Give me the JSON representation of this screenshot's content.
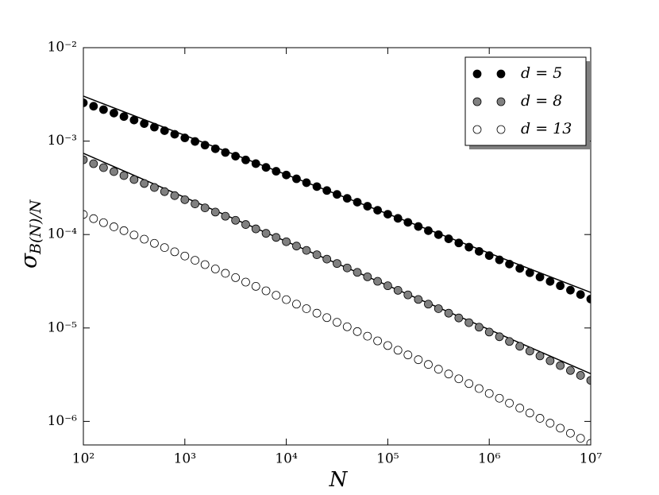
{
  "chart_data": {
    "type": "scatter",
    "xscale": "log",
    "yscale": "log",
    "xlabel": "N",
    "ylabel": {
      "symbol": "σ",
      "subscript": "B(N)/N"
    },
    "xlim": [
      100,
      10000000
    ],
    "ylim": [
      5.6e-07,
      0.01
    ],
    "xticks": [
      {
        "value": 100,
        "label": "10²"
      },
      {
        "value": 1000,
        "label": "10³"
      },
      {
        "value": 10000,
        "label": "10⁴"
      },
      {
        "value": 100000,
        "label": "10⁵"
      },
      {
        "value": 1000000,
        "label": "10⁶"
      },
      {
        "value": 10000000,
        "label": "10⁷"
      }
    ],
    "yticks": [
      {
        "value": 1e-06,
        "label": "10⁻⁶"
      },
      {
        "value": 1e-05,
        "label": "10⁻⁵"
      },
      {
        "value": 0.0001,
        "label": "10⁻⁴"
      },
      {
        "value": 0.001,
        "label": "10⁻³"
      },
      {
        "value": 0.01,
        "label": "10⁻²"
      }
    ],
    "grid": false,
    "legend": "upper right",
    "edgecolor": "#000000",
    "x": [
      100,
      126,
      158,
      200,
      251,
      316,
      398,
      501,
      631,
      794,
      1000,
      1260,
      1580,
      2000,
      2510,
      3160,
      3980,
      5010,
      6310,
      7940,
      10000,
      12600,
      15800,
      20000,
      25100,
      31600,
      39800,
      50100,
      63100,
      79400,
      100000,
      126000,
      158000,
      200000,
      251000,
      316000,
      398000,
      501000,
      631000,
      794000,
      1000000,
      1260000,
      1580000,
      2000000,
      2510000,
      3160000,
      3980000,
      5010000,
      6310000,
      7940000,
      10000000
    ],
    "series": [
      {
        "name": "d = 5",
        "color": "#000000",
        "values": [
          0.00257,
          0.002363,
          0.002172,
          0.001994,
          0.00183,
          0.00168,
          0.00154,
          0.001411,
          0.001293,
          0.001184,
          0.001083,
          0.000991,
          0.000906,
          0.000828,
          0.000756,
          0.00069,
          0.000629,
          0.000574,
          0.000523,
          0.000476,
          0.000434,
          0.000395,
          0.000359,
          0.000326,
          0.000296,
          0.000269,
          0.000244,
          0.000222,
          0.000201,
          0.000182,
          0.000165,
          0.000149,
          0.000135,
          0.000122,
          0.00011,
          9.97e-05,
          9e-05,
          8.13e-05,
          7.33e-05,
          6.61e-05,
          5.95e-05,
          5.36e-05,
          4.83e-05,
          4.34e-05,
          3.9e-05,
          3.51e-05,
          3.15e-05,
          2.83e-05,
          2.54e-05,
          2.28e-05,
          2.04e-05
        ]
      },
      {
        "name": "d = 8",
        "color": "#808080",
        "values": [
          0.000631,
          0.000573,
          0.00052,
          0.000472,
          0.000428,
          0.000388,
          0.000352,
          0.000319,
          0.000288,
          0.000261,
          0.000236,
          0.000213,
          0.000193,
          0.000174,
          0.000157,
          0.000142,
          0.000128,
          0.000115,
          0.000103,
          9.32e-05,
          8.38e-05,
          7.53e-05,
          6.77e-05,
          6.08e-05,
          5.46e-05,
          4.9e-05,
          4.39e-05,
          3.94e-05,
          3.53e-05,
          3.16e-05,
          2.83e-05,
          2.53e-05,
          2.26e-05,
          2.02e-05,
          1.8e-05,
          1.61e-05,
          1.44e-05,
          1.28e-05,
          1.14e-05,
          1.02e-05,
          9.05e-06,
          8.06e-06,
          7.17e-06,
          6.37e-06,
          5.66e-06,
          5.03e-06,
          4.46e-06,
          3.96e-06,
          3.51e-06,
          3.11e-06,
          2.75e-06
        ]
      },
      {
        "name": "d = 13",
        "color": "#ffffff",
        "values": [
          0.000164,
          0.000148,
          0.000134,
          0.000121,
          0.00011,
          9.89e-05,
          8.92e-05,
          8.05e-05,
          7.25e-05,
          6.54e-05,
          5.89e-05,
          5.3e-05,
          4.77e-05,
          4.28e-05,
          3.85e-05,
          3.46e-05,
          3.1e-05,
          2.79e-05,
          2.5e-05,
          2.24e-05,
          2.01e-05,
          1.8e-05,
          1.61e-05,
          1.44e-05,
          1.29e-05,
          1.15e-05,
          1.03e-05,
          9.15e-06,
          8.17e-06,
          7.28e-06,
          6.49e-06,
          5.78e-06,
          5.15e-06,
          4.58e-06,
          4.07e-06,
          3.62e-06,
          3.22e-06,
          2.86e-06,
          2.54e-06,
          2.25e-06,
          1.99e-06,
          1.77e-06,
          1.57e-06,
          1.39e-06,
          1.23e-06,
          1.08e-06,
          9.58e-07,
          8.47e-07,
          7.48e-07,
          6.6e-07,
          5.82e-07
        ]
      }
    ],
    "fits": [
      {
        "color": "#000000",
        "x": [
          100,
          10000000
        ],
        "values": [
          0.00303,
          2.4e-05
        ]
      },
      {
        "color": "#000000",
        "x": [
          100,
          10000000
        ],
        "values": [
          0.00074,
          3.24e-06
        ]
      }
    ]
  }
}
